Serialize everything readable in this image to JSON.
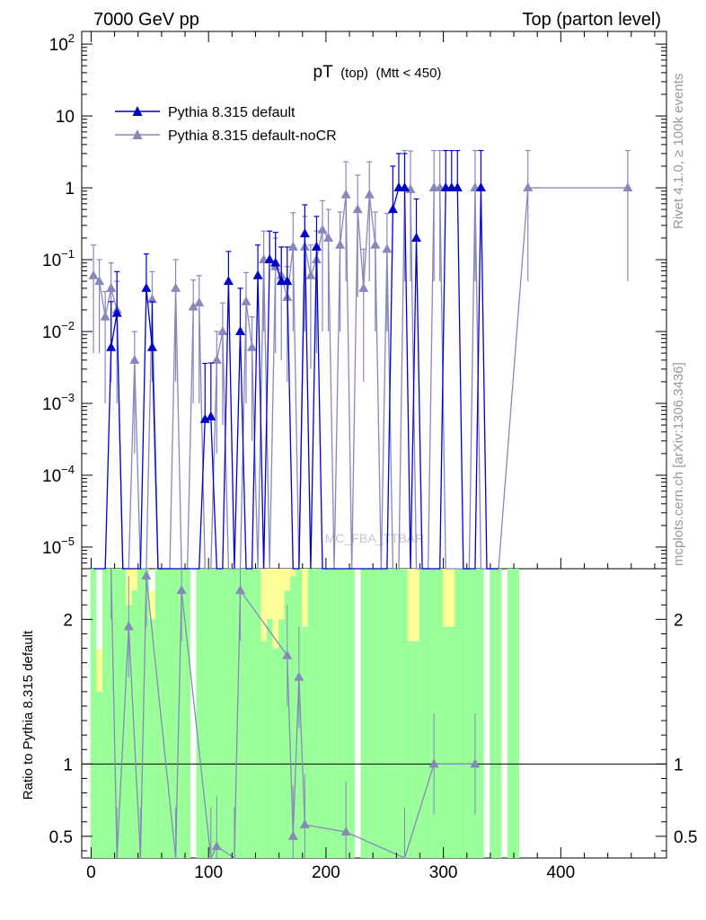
{
  "header": {
    "left": "7000 GeV pp",
    "right": "Top (parton level)"
  },
  "side": {
    "rivet": "Rivet 4.1.0, ≥ 100k events",
    "mcplots": "mcplots.cern.ch [arXiv:1306.3436]"
  },
  "chart_data": {
    "type": "line",
    "title_main": "pT",
    "title_sub": "(top)",
    "title_cond": "(Mtt < 450)",
    "watermark": "MC_FBA_TTBAR",
    "ylabel_ratio": "Ratio to Pythia 8.315 default",
    "x_range": [
      -8,
      490
    ],
    "y_range_log": [
      5e-06,
      150
    ],
    "ratio_range": [
      0.35,
      2.35
    ],
    "x_ticks": [
      "0",
      "100",
      "200",
      "300",
      "400"
    ],
    "x_tick_values": [
      0,
      100,
      200,
      300,
      400
    ],
    "y_ticks": [
      {
        "v": 100,
        "base": "10",
        "exp": "2"
      },
      {
        "v": 10,
        "base": "10",
        "exp": ""
      },
      {
        "v": 1,
        "base": "1",
        "exp": ""
      },
      {
        "v": 0.1,
        "base": "10",
        "exp": "−1"
      },
      {
        "v": 0.01,
        "base": "10",
        "exp": "−2"
      },
      {
        "v": 0.001,
        "base": "10",
        "exp": "−3"
      },
      {
        "v": 0.0001,
        "base": "10",
        "exp": "−4"
      },
      {
        "v": 1e-05,
        "base": "10",
        "exp": "−5"
      }
    ],
    "ratio_ticks": [
      "0.5",
      "1",
      "2"
    ],
    "ratio_tick_values": [
      0.5,
      1,
      2
    ],
    "series": [
      {
        "name": "Pythia 8.315 default",
        "color": "#0000cc",
        "x": [
          2,
          7,
          12,
          17,
          22,
          27,
          32,
          37,
          42,
          47,
          52,
          57,
          62,
          67,
          72,
          77,
          82,
          87,
          92,
          97,
          102,
          107,
          112,
          117,
          122,
          127,
          132,
          137,
          142,
          147,
          152,
          157,
          162,
          167,
          172,
          177,
          182,
          187,
          192,
          197,
          202,
          207,
          212,
          217,
          222,
          227,
          232,
          237,
          242,
          247,
          252,
          257,
          262,
          267,
          272,
          277,
          282,
          287,
          292,
          297,
          302,
          307,
          312,
          317,
          322,
          327,
          332,
          337,
          342,
          347
        ],
        "y": [
          1e-06,
          1e-06,
          1e-06,
          0.006,
          0.018,
          1e-06,
          1e-06,
          1e-06,
          1e-06,
          0.04,
          0.006,
          1e-06,
          1e-06,
          1e-06,
          1e-06,
          1e-06,
          1e-06,
          1e-06,
          1e-06,
          0.0006,
          0.00065,
          1e-06,
          1e-06,
          0.05,
          1e-06,
          0.01,
          1e-06,
          1e-06,
          0.06,
          1e-06,
          0.1,
          0.09,
          0.05,
          0.05,
          1e-06,
          1e-06,
          0.23,
          1e-06,
          0.15,
          1e-06,
          1e-06,
          1e-06,
          1e-06,
          1e-06,
          1e-06,
          1e-06,
          1e-06,
          1e-06,
          1e-06,
          1e-06,
          1e-06,
          0.5,
          1,
          1,
          1e-06,
          0.2,
          1e-06,
          1e-06,
          1e-06,
          1e-06,
          1,
          1,
          1,
          1e-06,
          1e-06,
          1e-06,
          1,
          1e-06,
          1e-06,
          1e-06
        ],
        "up": [
          0,
          0,
          0,
          0.02,
          0.05,
          0,
          0,
          0,
          0,
          0.08,
          0.02,
          0,
          0,
          0,
          0,
          0,
          0,
          0,
          0,
          0.003,
          0.003,
          0,
          0,
          0.08,
          0,
          0.03,
          0,
          0,
          0.1,
          0,
          0.15,
          0.15,
          0.1,
          0.1,
          0,
          0,
          0.35,
          0,
          0.25,
          0,
          0,
          0,
          0,
          0,
          0,
          0,
          0,
          0,
          0,
          0,
          0,
          1.5,
          2,
          2,
          0,
          0.5,
          0,
          0,
          0,
          0,
          2.3,
          2.3,
          2.3,
          0,
          0,
          0,
          2.3,
          0,
          0,
          0
        ],
        "down": [
          0,
          0,
          0,
          0,
          0,
          0,
          0,
          0,
          0,
          0,
          0,
          0,
          0,
          0,
          0,
          0,
          0,
          0,
          0,
          0,
          0,
          0,
          0,
          0,
          0,
          0,
          0,
          0,
          0,
          0,
          0,
          0,
          0,
          0,
          0,
          0,
          0,
          0,
          0,
          0,
          0,
          0,
          0,
          0,
          0,
          0,
          0,
          0,
          0,
          0,
          0,
          0,
          0,
          0,
          0,
          0,
          0,
          0,
          0,
          0,
          0,
          0,
          0,
          0,
          0,
          0,
          0,
          0,
          0,
          0
        ]
      },
      {
        "name": "Pythia 8.315 default-noCR",
        "color": "#8888bb",
        "x": [
          2,
          7,
          12,
          17,
          22,
          27,
          32,
          37,
          42,
          47,
          52,
          57,
          62,
          67,
          72,
          77,
          82,
          87,
          92,
          97,
          102,
          107,
          112,
          117,
          122,
          127,
          132,
          137,
          142,
          147,
          152,
          157,
          162,
          167,
          172,
          177,
          182,
          187,
          192,
          197,
          202,
          207,
          212,
          217,
          222,
          227,
          232,
          237,
          242,
          247,
          252,
          257,
          262,
          267,
          272,
          277,
          282,
          287,
          292,
          297,
          302,
          307,
          312,
          317,
          322,
          327,
          332,
          337,
          342,
          347,
          372,
          457
        ],
        "y": [
          0.06,
          0.05,
          0.016,
          0.04,
          0.02,
          1e-06,
          1e-06,
          0.004,
          1e-06,
          1e-06,
          0.028,
          1e-06,
          1e-06,
          1e-06,
          0.04,
          1e-06,
          1e-06,
          0.022,
          0.025,
          1e-06,
          1e-06,
          0.004,
          0.01,
          1e-06,
          1e-06,
          1e-06,
          0.026,
          0.006,
          1e-06,
          0.1,
          1e-06,
          0.08,
          0.06,
          0.03,
          0.15,
          1e-06,
          0.15,
          0.06,
          0.1,
          0.26,
          0.2,
          1e-06,
          0.16,
          0.8,
          1e-06,
          0.5,
          0.04,
          0.8,
          0.16,
          1e-06,
          0.14,
          1e-06,
          1e-06,
          1,
          0.95,
          1e-06,
          1e-06,
          1e-06,
          1,
          1,
          1e-06,
          1e-06,
          1e-06,
          1e-06,
          1e-06,
          1,
          1e-06,
          1e-06,
          1e-06,
          1e-06,
          1,
          1
        ],
        "up": [
          0.1,
          0.05,
          0.02,
          0.05,
          0.03,
          0,
          0,
          0.006,
          0,
          0,
          0.04,
          0,
          0,
          0,
          0.06,
          0,
          0,
          0.03,
          0.035,
          0,
          0,
          0.006,
          0.015,
          0,
          0,
          0,
          0.04,
          0.01,
          0,
          0.15,
          0,
          0.12,
          0.09,
          0.05,
          0.3,
          0,
          0.25,
          0.1,
          0.15,
          0.4,
          0.3,
          0,
          0.3,
          1.5,
          0,
          1,
          0.1,
          1.5,
          0.3,
          0,
          0.3,
          0,
          0,
          2.3,
          2.3,
          0,
          0,
          0,
          2.3,
          2.3,
          0,
          0,
          0,
          0,
          0,
          2.3,
          0,
          0,
          0,
          0,
          2.3,
          2.3
        ],
        "down": [
          0.055,
          0.045,
          0.015,
          0.038,
          0.019,
          0,
          0,
          0.0038,
          0,
          0,
          0.026,
          0,
          0,
          0,
          0.038,
          0,
          0,
          0.021,
          0.024,
          0,
          0,
          0.0038,
          0.0095,
          0,
          0,
          0,
          0.025,
          0.0057,
          0,
          0.09,
          0,
          0.075,
          0.056,
          0.028,
          0.14,
          0,
          0.14,
          0.057,
          0.095,
          0.25,
          0.19,
          0,
          0.15,
          0.75,
          0,
          0.47,
          0.038,
          0.75,
          0.15,
          0,
          0.13,
          0,
          0,
          0.95,
          0.9,
          0,
          0,
          0,
          0.95,
          0.95,
          0,
          0,
          0,
          0,
          0,
          0.95,
          0,
          0,
          0,
          0,
          0.95,
          0.95
        ]
      }
    ],
    "ratio_series": {
      "name": "Pythia 8.315 default-noCR",
      "x": [
        17,
        22,
        32,
        42,
        47,
        72,
        77,
        102,
        107,
        122,
        127,
        167,
        172,
        177,
        182,
        217,
        267,
        292,
        327
      ],
      "y": [
        2.35,
        0.35,
        1.95,
        0.35,
        2.3,
        0.35,
        2.2,
        0.35,
        0.43,
        0.35,
        2.2,
        1.75,
        0.5,
        1.6,
        0.58,
        0.53,
        0.35,
        1.0,
        1.0
      ]
    },
    "ratio_band": {
      "x": [
        2,
        7,
        12,
        17,
        22,
        27,
        32,
        37,
        42,
        47,
        52,
        57,
        62,
        67,
        72,
        77,
        82,
        87,
        92,
        97,
        102,
        107,
        112,
        117,
        122,
        127,
        132,
        137,
        142,
        147,
        152,
        157,
        162,
        167,
        172,
        177,
        182,
        187,
        192,
        197,
        202,
        207,
        212,
        217,
        222,
        227,
        232,
        237,
        242,
        247,
        252,
        257,
        262,
        267,
        272,
        277,
        282,
        287,
        292,
        297,
        302,
        307,
        312,
        317,
        322,
        327,
        332,
        337,
        342,
        347,
        352,
        357,
        362
      ],
      "green_lo": [
        0.35,
        0.35,
        0.35,
        0.35,
        0.35,
        0.35,
        0.35,
        0.35,
        0.35,
        0.35,
        0.35,
        0.35,
        0.35,
        0.35,
        0.35,
        0.35,
        0.35,
        null,
        0.35,
        0.35,
        0.35,
        0.35,
        0.35,
        0.35,
        0.35,
        0.35,
        0.35,
        0.35,
        0.35,
        0.35,
        0.35,
        0.35,
        0.35,
        0.35,
        0.35,
        0.35,
        0.35,
        0.35,
        0.35,
        0.35,
        0.35,
        0.35,
        0.35,
        0.35,
        0.35,
        null,
        0.35,
        0.35,
        0.35,
        0.35,
        0.35,
        0.35,
        0.35,
        0.35,
        0.35,
        0.35,
        0.35,
        0.35,
        0.35,
        0.35,
        0.35,
        0.35,
        0.35,
        0.35,
        0.35,
        0.35,
        0.35,
        null,
        0.35,
        0.35,
        null,
        0.35,
        0.35
      ],
      "green_hi": [
        2.35,
        1.5,
        2.35,
        2.35,
        2.35,
        2.35,
        2.1,
        2.2,
        2.35,
        2.35,
        2.0,
        2.35,
        2.35,
        2.35,
        2.35,
        2.35,
        2.35,
        null,
        2.35,
        2.35,
        2.35,
        2.35,
        2.35,
        2.35,
        2.35,
        2.35,
        2.35,
        2.35,
        2.35,
        1.85,
        2.0,
        1.8,
        2.0,
        2.2,
        2.3,
        2.35,
        1.95,
        2.35,
        2.35,
        2.35,
        2.35,
        2.35,
        2.35,
        2.35,
        2.35,
        null,
        2.35,
        2.35,
        2.35,
        2.35,
        2.35,
        2.35,
        2.35,
        2.35,
        1.85,
        1.85,
        2.35,
        2.35,
        2.35,
        2.35,
        1.95,
        1.95,
        2.35,
        2.35,
        2.35,
        2.35,
        2.35,
        null,
        2.35,
        2.35,
        null,
        2.35,
        2.35
      ],
      "yellow_hi": [
        2.35,
        1.8,
        2.35,
        2.35,
        2.35,
        2.35,
        2.35,
        2.35,
        2.35,
        2.35,
        2.2,
        2.35,
        2.35,
        2.35,
        2.35,
        2.35,
        2.35,
        null,
        2.35,
        2.35,
        2.35,
        2.35,
        2.35,
        2.35,
        2.35,
        2.35,
        2.35,
        2.35,
        2.35,
        2.35,
        2.35,
        2.35,
        2.35,
        2.35,
        2.35,
        2.35,
        2.35,
        2.35,
        2.35,
        2.35,
        2.35,
        2.35,
        2.35,
        2.35,
        2.35,
        null,
        2.35,
        2.35,
        2.35,
        2.35,
        2.35,
        2.35,
        2.35,
        2.35,
        2.35,
        2.35,
        2.35,
        2.35,
        2.35,
        2.35,
        2.35,
        2.35,
        2.35,
        2.35,
        2.35,
        2.35,
        2.35,
        null,
        2.35,
        2.35,
        null,
        2.35,
        2.35
      ]
    }
  }
}
